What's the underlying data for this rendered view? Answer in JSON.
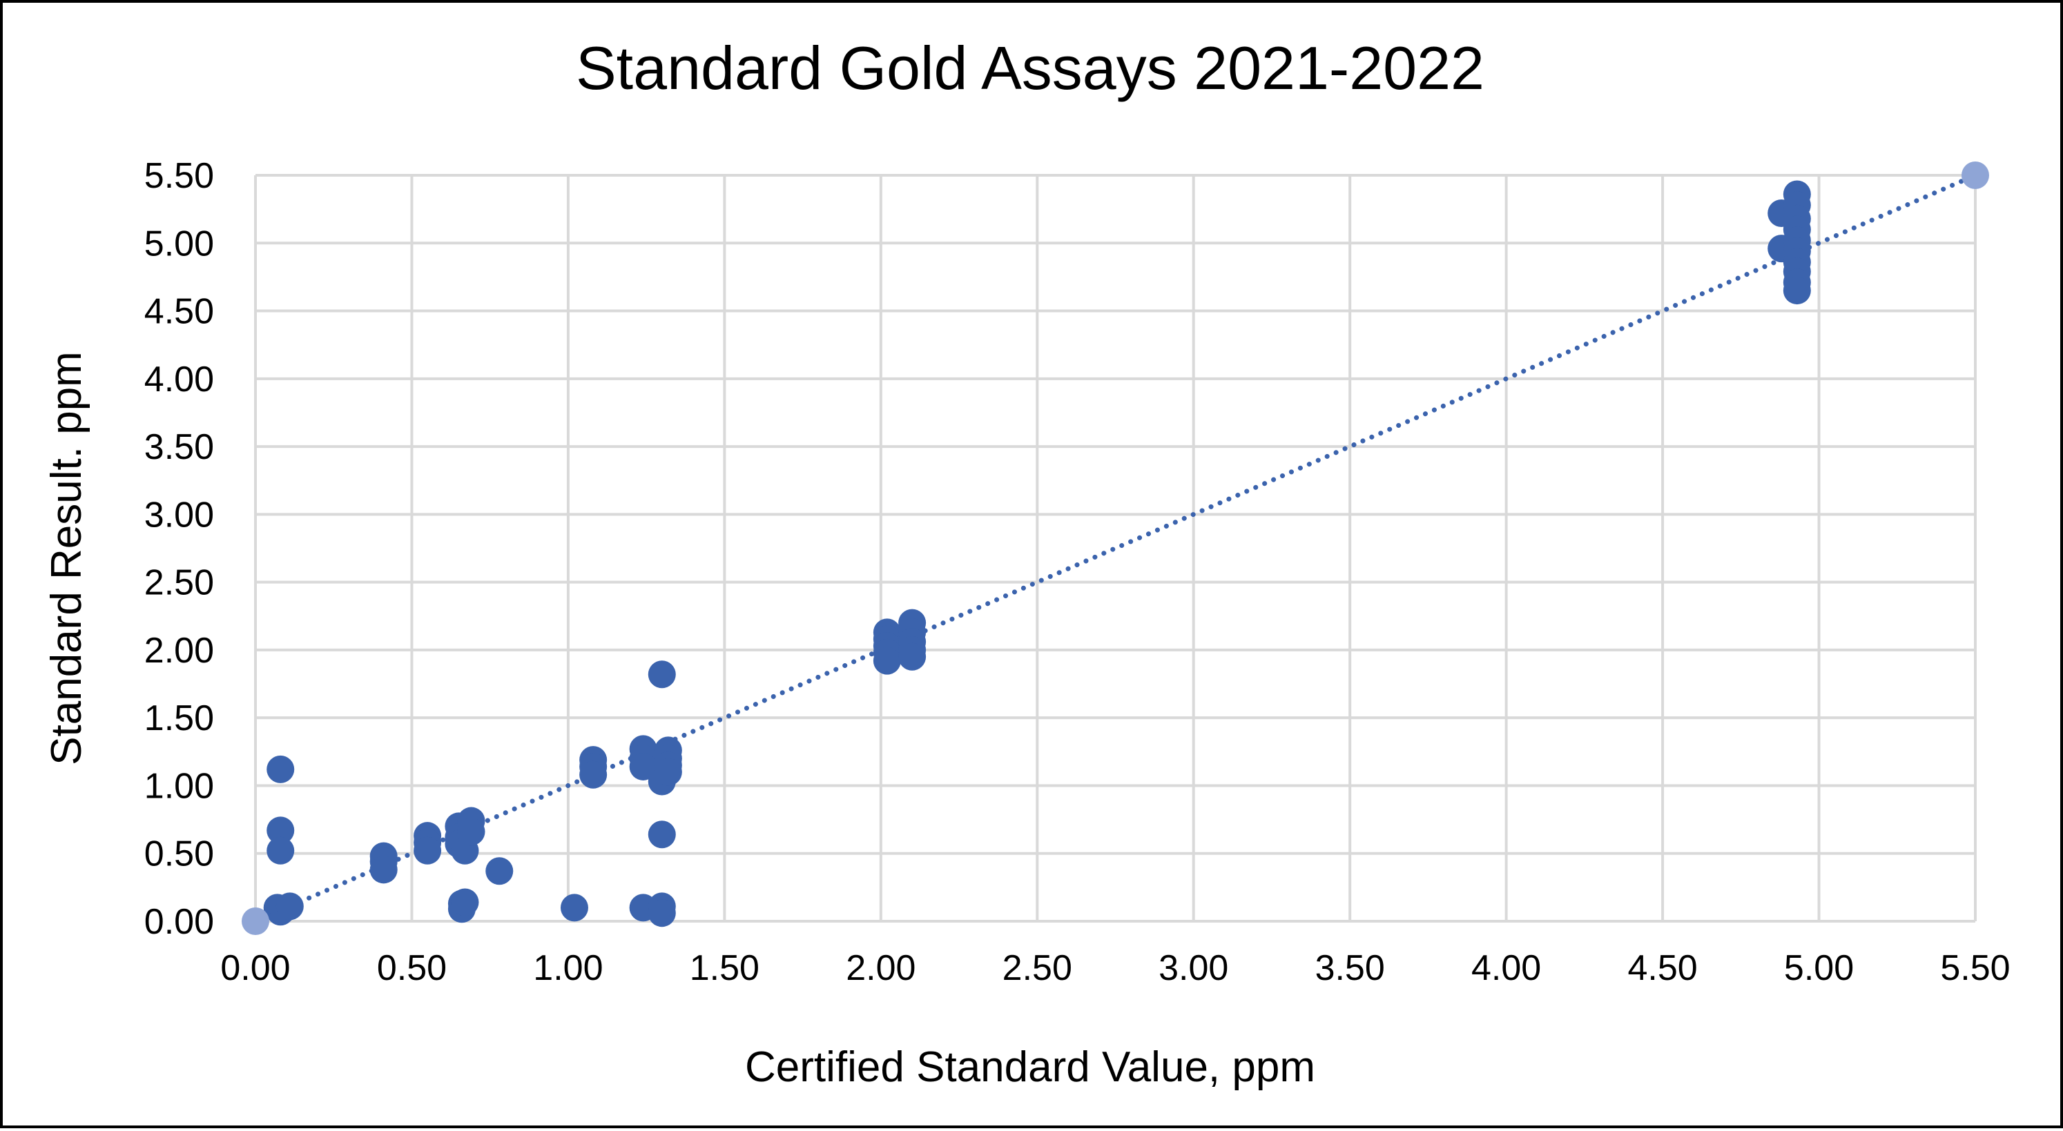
{
  "chart_data": {
    "type": "scatter",
    "title": "Standard Gold Assays 2021-2022",
    "xlabel": "Certified Standard Value, ppm",
    "ylabel": "Standard Result. ppm",
    "xlim": [
      0,
      5.5
    ],
    "ylim": [
      0,
      5.5
    ],
    "x_ticks": [
      "0.00",
      "0.50",
      "1.00",
      "1.50",
      "2.00",
      "2.50",
      "3.00",
      "3.50",
      "4.00",
      "4.50",
      "5.00",
      "5.50"
    ],
    "y_ticks": [
      "0.00",
      "0.50",
      "1.00",
      "1.50",
      "2.00",
      "2.50",
      "3.00",
      "3.50",
      "4.00",
      "4.50",
      "5.00",
      "5.50"
    ],
    "grid": true,
    "legend": "none",
    "colors": {
      "points": "#3b63ad",
      "reference": "#8fa5d6",
      "trendline": "#3b63ad",
      "grid": "#d9d9d9"
    },
    "series": [
      {
        "values": [
          {
            "x": 0.07,
            "y": 0.1
          },
          {
            "x": 0.08,
            "y": 0.07
          },
          {
            "x": 0.09,
            "y": 0.09
          },
          {
            "x": 0.11,
            "y": 0.11
          },
          {
            "x": 0.08,
            "y": 1.12
          },
          {
            "x": 0.08,
            "y": 0.67
          },
          {
            "x": 0.08,
            "y": 0.52
          },
          {
            "x": 0.41,
            "y": 0.48
          },
          {
            "x": 0.41,
            "y": 0.44
          },
          {
            "x": 0.41,
            "y": 0.38
          },
          {
            "x": 0.55,
            "y": 0.63
          },
          {
            "x": 0.55,
            "y": 0.58
          },
          {
            "x": 0.55,
            "y": 0.52
          },
          {
            "x": 0.65,
            "y": 0.7
          },
          {
            "x": 0.65,
            "y": 0.62
          },
          {
            "x": 0.65,
            "y": 0.57
          },
          {
            "x": 0.67,
            "y": 0.52
          },
          {
            "x": 0.69,
            "y": 0.74
          },
          {
            "x": 0.69,
            "y": 0.66
          },
          {
            "x": 0.66,
            "y": 0.13
          },
          {
            "x": 0.66,
            "y": 0.09
          },
          {
            "x": 0.67,
            "y": 0.14
          },
          {
            "x": 0.78,
            "y": 0.37
          },
          {
            "x": 1.02,
            "y": 0.1
          },
          {
            "x": 1.08,
            "y": 1.19
          },
          {
            "x": 1.08,
            "y": 1.14
          },
          {
            "x": 1.08,
            "y": 1.08
          },
          {
            "x": 1.24,
            "y": 1.27
          },
          {
            "x": 1.24,
            "y": 1.2
          },
          {
            "x": 1.24,
            "y": 1.14
          },
          {
            "x": 1.24,
            "y": 0.1
          },
          {
            "x": 1.3,
            "y": 1.82
          },
          {
            "x": 1.3,
            "y": 0.64
          },
          {
            "x": 1.3,
            "y": 0.11
          },
          {
            "x": 1.3,
            "y": 0.06
          },
          {
            "x": 1.3,
            "y": 1.03
          },
          {
            "x": 1.32,
            "y": 1.26
          },
          {
            "x": 1.32,
            "y": 1.2
          },
          {
            "x": 1.32,
            "y": 1.15
          },
          {
            "x": 1.32,
            "y": 1.1
          },
          {
            "x": 2.02,
            "y": 2.13
          },
          {
            "x": 2.02,
            "y": 2.08
          },
          {
            "x": 2.02,
            "y": 2.03
          },
          {
            "x": 2.02,
            "y": 1.98
          },
          {
            "x": 2.02,
            "y": 1.92
          },
          {
            "x": 2.1,
            "y": 2.2
          },
          {
            "x": 2.1,
            "y": 2.13
          },
          {
            "x": 2.1,
            "y": 2.06
          },
          {
            "x": 2.1,
            "y": 2.0
          },
          {
            "x": 2.1,
            "y": 1.95
          },
          {
            "x": 4.88,
            "y": 5.22
          },
          {
            "x": 4.88,
            "y": 4.96
          },
          {
            "x": 4.93,
            "y": 5.36
          },
          {
            "x": 4.93,
            "y": 5.28
          },
          {
            "x": 4.93,
            "y": 5.18
          },
          {
            "x": 4.93,
            "y": 5.1
          },
          {
            "x": 4.93,
            "y": 5.02
          },
          {
            "x": 4.93,
            "y": 4.94
          },
          {
            "x": 4.93,
            "y": 4.86
          },
          {
            "x": 4.93,
            "y": 4.79
          },
          {
            "x": 4.93,
            "y": 4.71
          },
          {
            "x": 4.93,
            "y": 4.65
          }
        ]
      },
      {
        "values": [
          {
            "x": 0.0,
            "y": 0.0
          },
          {
            "x": 5.5,
            "y": 5.5
          }
        ]
      }
    ],
    "trendline": {
      "style": "dotted",
      "from": {
        "x": 0.0,
        "y": 0.0
      },
      "to": {
        "x": 5.5,
        "y": 5.5
      }
    }
  }
}
